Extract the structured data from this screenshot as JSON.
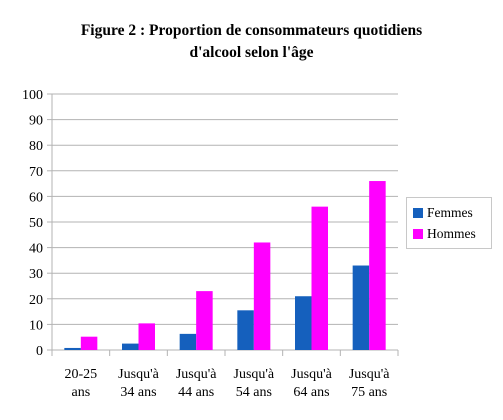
{
  "chart_data": {
    "type": "bar",
    "title_lines": [
      "Figure 2 : Proportion de consommateurs quotidiens",
      "d'alcool selon l'âge"
    ],
    "categories": [
      [
        "20-25",
        "ans"
      ],
      [
        "Jusqu'à",
        "34 ans"
      ],
      [
        "Jusqu'à",
        "44 ans"
      ],
      [
        "Jusqu'à",
        "54 ans"
      ],
      [
        "Jusqu'à",
        "64 ans"
      ],
      [
        "Jusqu'à",
        "75 ans"
      ]
    ],
    "series": [
      {
        "name": "Femmes",
        "color": "#1560bd",
        "values": [
          0.8,
          2.5,
          6.3,
          15.5,
          21,
          33
        ]
      },
      {
        "name": "Hommes",
        "color": "#ff00ff",
        "values": [
          5.2,
          10.4,
          23,
          42,
          56,
          66
        ]
      }
    ],
    "ylim": [
      0,
      100
    ],
    "yticks": [
      0,
      10,
      20,
      30,
      40,
      50,
      60,
      70,
      80,
      90,
      100
    ],
    "grid": true,
    "legend_position": "right"
  }
}
